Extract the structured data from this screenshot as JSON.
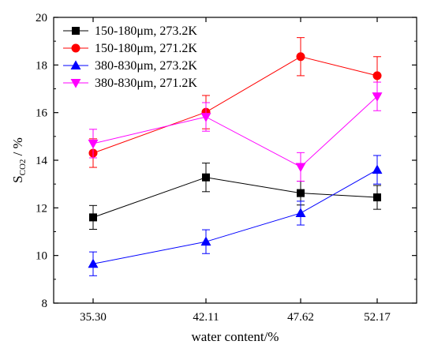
{
  "chart_data": {
    "type": "line",
    "categories": [
      "35.30",
      "42.11",
      "47.62",
      "52.17"
    ],
    "xlabel": "water content/%",
    "ylabel": {
      "main": "S",
      "sub": "CO2",
      "suffix": " / %"
    },
    "ylim": [
      8,
      20
    ],
    "yticks": [
      8,
      10,
      12,
      14,
      16,
      18,
      20
    ],
    "grid": false,
    "legend_position": "top-left",
    "series": [
      {
        "name": "150-180μm, 273.2K",
        "color": "#000000",
        "marker": "square",
        "values": [
          11.6,
          13.28,
          12.62,
          12.44
        ],
        "errors": [
          0.5,
          0.6,
          0.5,
          0.5
        ]
      },
      {
        "name": "150-180μm, 271.2K",
        "color": "#ff0000",
        "marker": "circle",
        "values": [
          14.3,
          16.02,
          18.35,
          17.55
        ],
        "errors": [
          0.6,
          0.7,
          0.8,
          0.8
        ]
      },
      {
        "name": "380-830μm, 273.2K",
        "color": "#0000ff",
        "marker": "triangle-up",
        "values": [
          9.65,
          10.58,
          11.78,
          13.6
        ],
        "errors": [
          0.5,
          0.5,
          0.5,
          0.6
        ]
      },
      {
        "name": "380-830μm, 271.2K",
        "color": "#ff00ff",
        "marker": "triangle-down",
        "values": [
          14.7,
          15.82,
          13.72,
          16.68
        ],
        "errors": [
          0.6,
          0.6,
          0.6,
          0.6
        ]
      }
    ]
  }
}
